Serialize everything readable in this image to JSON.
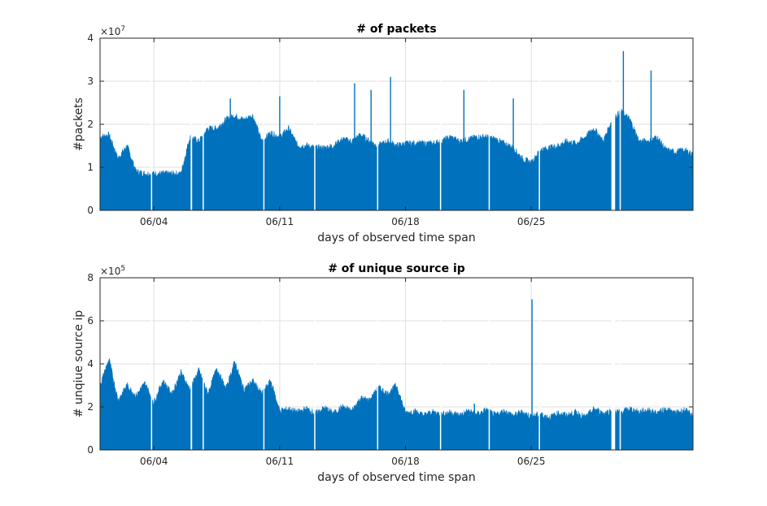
{
  "colors": {
    "series": "#0072bd",
    "grid": "#dfdfdf",
    "axis": "#262626",
    "background": "#ffffff"
  },
  "chart_data": [
    {
      "type": "area",
      "title": "# of packets",
      "xlabel": "days of observed time span",
      "ylabel": "#packets",
      "y_multiplier": {
        "base": "×10",
        "exp": "7"
      },
      "xlim": [
        "2023-06-01 00:00",
        "2023-07-04 00:00"
      ],
      "ylim": [
        0,
        40000000
      ],
      "yticks": [
        0,
        10000000,
        20000000,
        30000000,
        40000000
      ],
      "ytick_labels": [
        "0",
        "1",
        "2",
        "3",
        "4"
      ],
      "xticks": [
        "2023-06-04",
        "2023-06-11",
        "2023-06-18",
        "2023-06-25"
      ],
      "xtick_labels": [
        "06/04",
        "06/11",
        "06/18",
        "06/25"
      ],
      "grid": true,
      "series": [
        {
          "x": [
            "2023-06-01",
            "2023-06-01 12:00",
            "2023-06-02",
            "2023-06-02 12:00",
            "2023-06-03",
            "2023-06-03 12:00",
            "2023-06-04",
            "2023-06-04 12:00",
            "2023-06-05",
            "2023-06-05 12:00",
            "2023-06-06",
            "2023-06-06 12:00",
            "2023-06-07",
            "2023-06-07 12:00",
            "2023-06-08",
            "2023-06-08 12:00",
            "2023-06-09",
            "2023-06-09 12:00",
            "2023-06-10",
            "2023-06-10 12:00",
            "2023-06-11",
            "2023-06-11 12:00",
            "2023-06-12",
            "2023-06-12 12:00",
            "2023-06-13",
            "2023-06-13 12:00",
            "2023-06-14",
            "2023-06-14 12:00",
            "2023-06-15",
            "2023-06-15 12:00",
            "2023-06-16",
            "2023-06-16 12:00",
            "2023-06-17",
            "2023-06-17 12:00",
            "2023-06-18",
            "2023-06-18 12:00",
            "2023-06-19",
            "2023-06-19 12:00",
            "2023-06-20",
            "2023-06-20 12:00",
            "2023-06-21",
            "2023-06-21 12:00",
            "2023-06-22",
            "2023-06-22 12:00",
            "2023-06-23",
            "2023-06-23 12:00",
            "2023-06-24",
            "2023-06-24 12:00",
            "2023-06-25",
            "2023-06-25 12:00",
            "2023-06-26",
            "2023-06-26 12:00",
            "2023-06-27",
            "2023-06-27 12:00",
            "2023-06-28",
            "2023-06-28 12:00",
            "2023-06-29",
            "2023-06-29 12:00",
            "2023-06-30",
            "2023-06-30 12:00",
            "2023-07-01",
            "2023-07-01 12:00",
            "2023-07-02",
            "2023-07-02 12:00",
            "2023-07-03",
            "2023-07-03 12:00",
            "2023-07-04"
          ],
          "values": [
            17000000,
            17500000,
            12000000,
            15000000,
            9000000,
            8500000,
            8500000,
            8500000,
            8500000,
            8500000,
            17000000,
            16000000,
            19000000,
            19000000,
            21000000,
            22000000,
            21000000,
            22000000,
            16000000,
            18000000,
            17000000,
            19000000,
            15000000,
            15000000,
            14500000,
            14500000,
            15000000,
            16500000,
            16000000,
            17500000,
            16000000,
            15000000,
            16000000,
            15000000,
            15500000,
            15500000,
            15500000,
            15500000,
            16000000,
            17000000,
            16000000,
            16500000,
            17000000,
            17000000,
            16500000,
            15500000,
            14500000,
            12000000,
            11000000,
            14000000,
            14500000,
            15000000,
            16000000,
            15500000,
            17000000,
            19000000,
            16000000,
            21000000,
            23000000,
            21000000,
            16000000,
            16000000,
            17000000,
            14000000,
            13500000,
            14000000,
            13000000
          ]
        }
      ],
      "spikes": [
        {
          "x": "2023-06-08 06:00",
          "value": 26000000
        },
        {
          "x": "2023-06-11 00:00",
          "value": 26500000
        },
        {
          "x": "2023-06-15 04:00",
          "value": 29500000
        },
        {
          "x": "2023-06-16 02:00",
          "value": 28000000
        },
        {
          "x": "2023-06-17 04:00",
          "value": 31000000
        },
        {
          "x": "2023-06-21 06:00",
          "value": 28000000
        },
        {
          "x": "2023-06-24 00:00",
          "value": 26000000
        },
        {
          "x": "2023-06-30 03:00",
          "value": 37000000
        },
        {
          "x": "2023-07-01 16:00",
          "value": 32500000
        }
      ],
      "gaps": [
        {
          "from": "2023-06-03 20:00",
          "to": "2023-06-03 21:00"
        },
        {
          "from": "2023-06-06 01:00",
          "to": "2023-06-06 03:00"
        },
        {
          "from": "2023-06-06 17:00",
          "to": "2023-06-06 18:00"
        },
        {
          "from": "2023-06-10 02:00",
          "to": "2023-06-10 03:00"
        },
        {
          "from": "2023-06-12 22:00",
          "to": "2023-06-12 23:00"
        },
        {
          "from": "2023-06-16 10:00",
          "to": "2023-06-16 11:00"
        },
        {
          "from": "2023-06-19 22:00",
          "to": "2023-06-19 23:00"
        },
        {
          "from": "2023-06-22 15:00",
          "to": "2023-06-22 16:00"
        },
        {
          "from": "2023-06-25 10:00",
          "to": "2023-06-25 11:00"
        },
        {
          "from": "2023-06-29 11:00",
          "to": "2023-06-29 16:00"
        },
        {
          "from": "2023-06-29 22:00",
          "to": "2023-06-29 23:00"
        }
      ]
    },
    {
      "type": "area",
      "title": "# of unique source ip",
      "xlabel": "days of observed time span",
      "ylabel": "# unqiue source ip",
      "y_multiplier": {
        "base": "×10",
        "exp": "5"
      },
      "xlim": [
        "2023-06-01 00:00",
        "2023-07-04 00:00"
      ],
      "ylim": [
        0,
        800000
      ],
      "yticks": [
        0,
        200000,
        400000,
        600000,
        800000
      ],
      "ytick_labels": [
        "0",
        "2",
        "4",
        "6",
        "8"
      ],
      "xticks": [
        "2023-06-04",
        "2023-06-11",
        "2023-06-18",
        "2023-06-25"
      ],
      "xtick_labels": [
        "06/04",
        "06/11",
        "06/18",
        "06/25"
      ],
      "grid": true,
      "series": [
        {
          "x": [
            "2023-06-01",
            "2023-06-01 12:00",
            "2023-06-02",
            "2023-06-02 12:00",
            "2023-06-03",
            "2023-06-03 12:00",
            "2023-06-04",
            "2023-06-04 12:00",
            "2023-06-05",
            "2023-06-05 12:00",
            "2023-06-06",
            "2023-06-06 12:00",
            "2023-06-07",
            "2023-06-07 12:00",
            "2023-06-08",
            "2023-06-08 12:00",
            "2023-06-09",
            "2023-06-09 12:00",
            "2023-06-10",
            "2023-06-10 12:00",
            "2023-06-11",
            "2023-06-11 12:00",
            "2023-06-12",
            "2023-06-12 12:00",
            "2023-06-13",
            "2023-06-13 12:00",
            "2023-06-14",
            "2023-06-14 12:00",
            "2023-06-15",
            "2023-06-15 12:00",
            "2023-06-16",
            "2023-06-16 12:00",
            "2023-06-17",
            "2023-06-17 12:00",
            "2023-06-18",
            "2023-06-18 12:00",
            "2023-06-19",
            "2023-06-19 12:00",
            "2023-06-20",
            "2023-06-20 12:00",
            "2023-06-21",
            "2023-06-21 12:00",
            "2023-06-22",
            "2023-06-22 12:00",
            "2023-06-23",
            "2023-06-23 12:00",
            "2023-06-24",
            "2023-06-24 12:00",
            "2023-06-25",
            "2023-06-25 12:00",
            "2023-06-26",
            "2023-06-26 12:00",
            "2023-06-27",
            "2023-06-27 12:00",
            "2023-06-28",
            "2023-06-28 12:00",
            "2023-06-29",
            "2023-06-29 12:00",
            "2023-06-30",
            "2023-06-30 12:00",
            "2023-07-01",
            "2023-07-01 12:00",
            "2023-07-02",
            "2023-07-02 12:00",
            "2023-07-03",
            "2023-07-03 12:00",
            "2023-07-04"
          ],
          "values": [
            300000,
            420000,
            230000,
            300000,
            250000,
            310000,
            220000,
            320000,
            260000,
            360000,
            280000,
            370000,
            260000,
            380000,
            280000,
            410000,
            280000,
            320000,
            260000,
            320000,
            180000,
            190000,
            175000,
            190000,
            170000,
            195000,
            170000,
            200000,
            180000,
            240000,
            230000,
            290000,
            260000,
            300000,
            170000,
            180000,
            160000,
            175000,
            165000,
            175000,
            160000,
            180000,
            165000,
            185000,
            160000,
            180000,
            160000,
            175000,
            155000,
            165000,
            150000,
            170000,
            160000,
            175000,
            150000,
            190000,
            170000,
            180000,
            175000,
            190000,
            175000,
            185000,
            170000,
            190000,
            170000,
            185000,
            160000
          ]
        }
      ],
      "spikes": [
        {
          "x": "2023-06-25 01:00",
          "value": 700000
        },
        {
          "x": "2023-06-21 20:00",
          "value": 215000
        }
      ],
      "gaps": [
        {
          "from": "2023-06-03 20:00",
          "to": "2023-06-03 21:00"
        },
        {
          "from": "2023-06-06 01:00",
          "to": "2023-06-06 03:00"
        },
        {
          "from": "2023-06-06 17:00",
          "to": "2023-06-06 18:00"
        },
        {
          "from": "2023-06-10 02:00",
          "to": "2023-06-10 03:00"
        },
        {
          "from": "2023-06-12 22:00",
          "to": "2023-06-12 23:00"
        },
        {
          "from": "2023-06-16 10:00",
          "to": "2023-06-16 11:00"
        },
        {
          "from": "2023-06-19 22:00",
          "to": "2023-06-19 23:00"
        },
        {
          "from": "2023-06-22 15:00",
          "to": "2023-06-22 16:00"
        },
        {
          "from": "2023-06-25 10:00",
          "to": "2023-06-25 11:00"
        },
        {
          "from": "2023-06-29 11:00",
          "to": "2023-06-29 16:00"
        },
        {
          "from": "2023-06-29 22:00",
          "to": "2023-06-29 23:00"
        }
      ]
    }
  ]
}
